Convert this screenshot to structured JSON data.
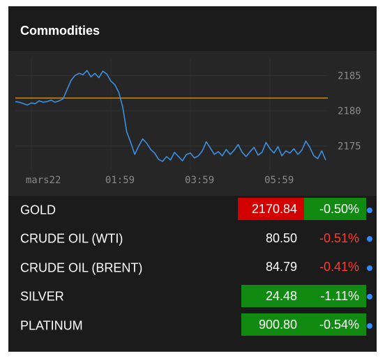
{
  "title": "Commodities",
  "colors": {
    "line": "#3d8fe0",
    "reference": "#c48a2a",
    "up_bg": "#118a11",
    "down_bg": "#d30000",
    "down_text": "#ff3b2f",
    "dot": "#2d8cff"
  },
  "chart_data": {
    "type": "line",
    "title": "",
    "xlabel": "",
    "ylabel": "",
    "x_ticks": [
      "mars22",
      "01:59",
      "03:59",
      "05:59"
    ],
    "y_ticks": [
      2175,
      2180,
      2185
    ],
    "ylim": [
      2171.5,
      2187.5
    ],
    "reference_line": 2181.8,
    "grid": true,
    "series": [
      {
        "name": "",
        "x": [
          0.0,
          0.1,
          0.2,
          0.3,
          0.4,
          0.5,
          0.6,
          0.7,
          0.8,
          0.9,
          1.0,
          1.1,
          1.2,
          1.3,
          1.4,
          1.5,
          1.6,
          1.7,
          1.8,
          1.9,
          2.0,
          2.1,
          2.2,
          2.3,
          2.4,
          2.5,
          2.6,
          2.7,
          2.8,
          2.9,
          3.0,
          3.1,
          3.2,
          3.3,
          3.4,
          3.5,
          3.6,
          3.7,
          3.8,
          3.9,
          4.0,
          4.1,
          4.2,
          4.3,
          4.4,
          4.5,
          4.6,
          4.7,
          4.8,
          4.9,
          5.0,
          5.1,
          5.2,
          5.3,
          5.4,
          5.5,
          5.6,
          5.7,
          5.8,
          5.9,
          6.0,
          6.1,
          6.2,
          6.3,
          6.4,
          6.5,
          6.6,
          6.7,
          6.8,
          6.9,
          7.0,
          7.1,
          7.2,
          7.3,
          7.4,
          7.5,
          7.6,
          7.7,
          7.8
        ],
        "values": [
          2181.3,
          2181.2,
          2181.0,
          2180.8,
          2181.1,
          2181.0,
          2181.4,
          2181.2,
          2181.3,
          2181.5,
          2181.2,
          2181.4,
          2181.7,
          2183.0,
          2184.3,
          2185.0,
          2185.3,
          2185.1,
          2185.7,
          2184.8,
          2185.3,
          2184.7,
          2185.6,
          2185.2,
          2184.2,
          2183.7,
          2182.6,
          2180.5,
          2177.0,
          2175.5,
          2173.8,
          2175.0,
          2176.0,
          2175.4,
          2174.5,
          2174.0,
          2173.1,
          2172.8,
          2173.5,
          2173.0,
          2174.1,
          2173.5,
          2172.9,
          2173.8,
          2174.0,
          2173.3,
          2173.6,
          2174.3,
          2175.6,
          2174.7,
          2173.8,
          2174.2,
          2173.6,
          2174.5,
          2173.8,
          2174.4,
          2175.2,
          2174.1,
          2173.5,
          2174.2,
          2174.8,
          2173.7,
          2174.1,
          2175.5,
          2174.6,
          2174.0,
          2174.9,
          2173.6,
          2174.3,
          2174.0,
          2174.6,
          2173.8,
          2174.4,
          2175.7,
          2174.8,
          2173.6,
          2173.2,
          2174.3,
          2173.0
        ]
      }
    ]
  },
  "table": {
    "rows": [
      {
        "name": "GOLD",
        "price": "2170.84",
        "change": "-0.50%",
        "price_bg": "red",
        "change_bg": "green",
        "change_color": "white"
      },
      {
        "name": "CRUDE OIL (WTI)",
        "price": "80.50",
        "change": "-0.51%",
        "price_bg": "none",
        "change_bg": "none",
        "change_color": "red"
      },
      {
        "name": "CRUDE OIL (BRENT)",
        "price": "84.79",
        "change": "-0.41%",
        "price_bg": "none",
        "change_bg": "none",
        "change_color": "red"
      },
      {
        "name": "SILVER",
        "price": "24.48",
        "change": "-1.11%",
        "price_bg": "green",
        "change_bg": "green",
        "change_color": "white"
      },
      {
        "name": "PLATINUM",
        "price": "900.80",
        "change": "-0.54%",
        "price_bg": "green",
        "change_bg": "green",
        "change_color": "white"
      }
    ]
  }
}
